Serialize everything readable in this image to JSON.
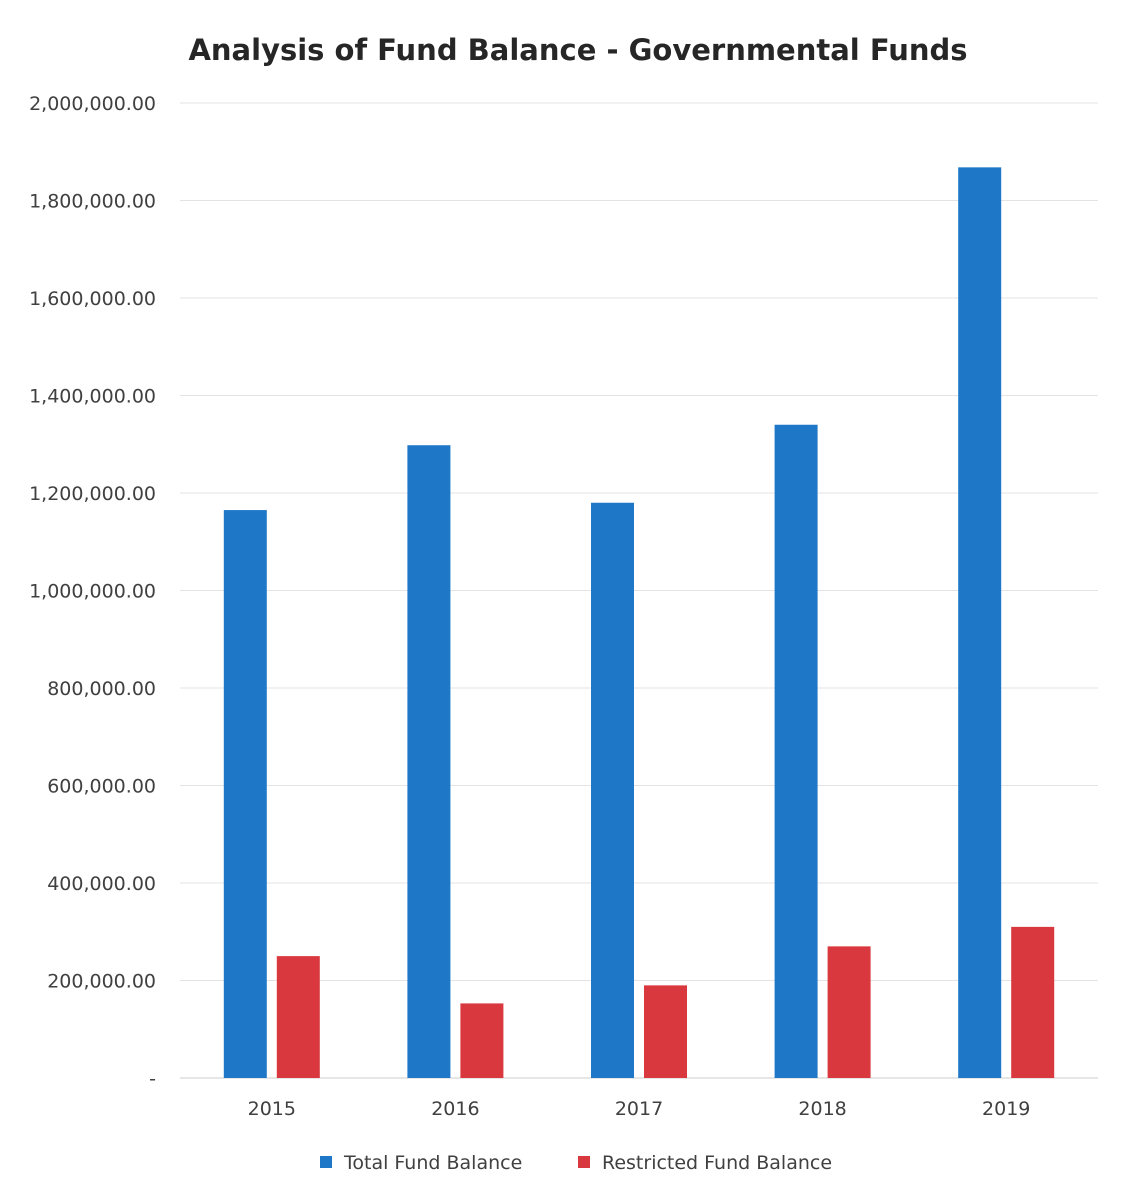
{
  "chart_data": {
    "type": "bar",
    "title": "Analysis of Fund Balance - Governmental Funds",
    "xlabel": "",
    "ylabel": "",
    "categories": [
      "2015",
      "2016",
      "2017",
      "2018",
      "2019"
    ],
    "series": [
      {
        "name": "Total Fund Balance",
        "color": "#1f77c8",
        "values": [
          1165000,
          1298000,
          1180000,
          1340000,
          1868000
        ]
      },
      {
        "name": "Restricted Fund Balance",
        "color": "#d9383e",
        "values": [
          250000,
          153000,
          190000,
          270000,
          310000
        ]
      }
    ],
    "ylim": [
      0,
      2000000
    ],
    "y_ticks": [
      0,
      200000,
      400000,
      600000,
      800000,
      1000000,
      1200000,
      1400000,
      1600000,
      1800000,
      2000000
    ],
    "y_tick_labels": [
      "-",
      "200,000.00",
      "400,000.00",
      "600,000.00",
      "800,000.00",
      "1,000,000.00",
      "1,200,000.00",
      "1,400,000.00",
      "1,600,000.00",
      "1,800,000.00",
      "2,000,000.00"
    ],
    "grid": true,
    "legend_position": "bottom"
  }
}
